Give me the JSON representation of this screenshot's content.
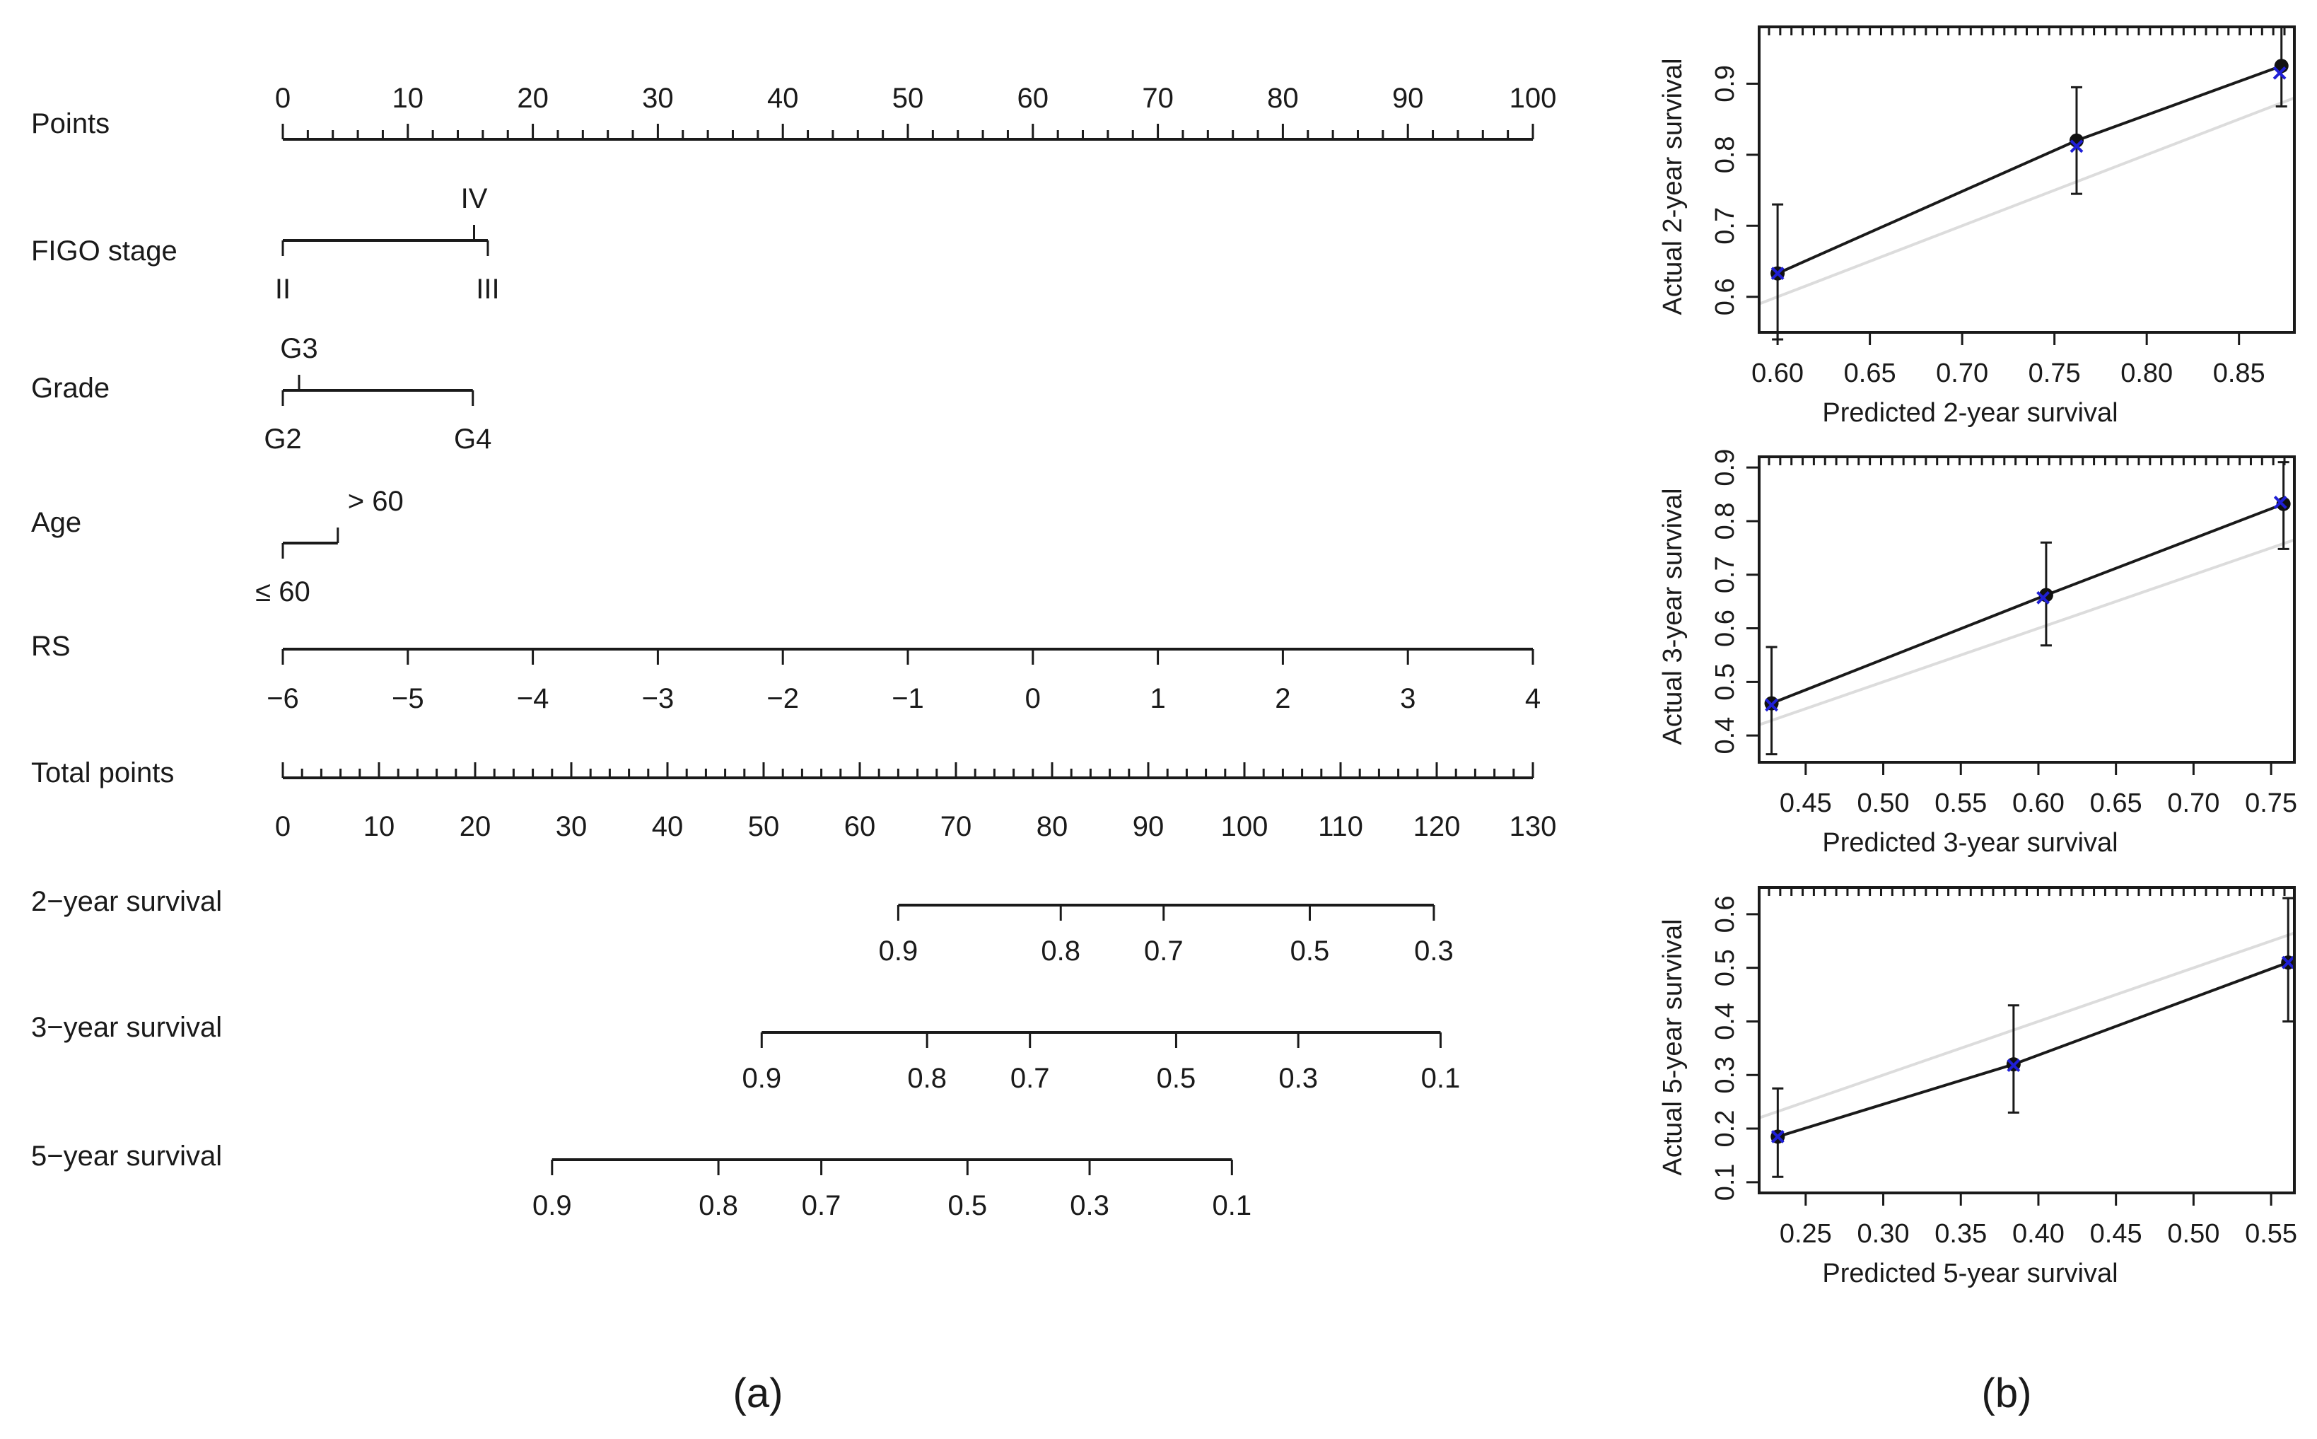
{
  "panel_labels": {
    "a": "(a)",
    "b": "(b)"
  },
  "chart_data": [
    {
      "type": "nomogram",
      "panel": "(a)",
      "rows": [
        {
          "name": "Points",
          "scale_min": 0,
          "scale_max": 100,
          "ticks": [
            0,
            10,
            20,
            30,
            40,
            50,
            60,
            70,
            80,
            90,
            100
          ],
          "minor_step": 2
        },
        {
          "name": "FIGO stage",
          "levels": [
            {
              "label": "II",
              "points": 0,
              "side": "below"
            },
            {
              "label": "IV",
              "points": 15.3,
              "side": "above"
            },
            {
              "label": "III",
              "points": 16.4,
              "side": "below"
            }
          ]
        },
        {
          "name": "Grade",
          "levels": [
            {
              "label": "G2",
              "points": 0,
              "side": "below"
            },
            {
              "label": "G3",
              "points": 1.3,
              "side": "above"
            },
            {
              "label": "G4",
              "points": 15.2,
              "side": "below"
            }
          ]
        },
        {
          "name": "Age",
          "levels": [
            {
              "label": "≤ 60",
              "points": 0,
              "side": "below"
            },
            {
              "label": "> 60",
              "points": 4.4,
              "side": "above"
            }
          ]
        },
        {
          "name": "RS",
          "ticks": [
            {
              "label": "−6",
              "points": 0
            },
            {
              "label": "−5",
              "points": 10
            },
            {
              "label": "−4",
              "points": 20
            },
            {
              "label": "−3",
              "points": 30
            },
            {
              "label": "−2",
              "points": 40
            },
            {
              "label": "−1",
              "points": 50
            },
            {
              "label": "0",
              "points": 60
            },
            {
              "label": "1",
              "points": 70
            },
            {
              "label": "2",
              "points": 80
            },
            {
              "label": "3",
              "points": 90
            },
            {
              "label": "4",
              "points": 100
            }
          ]
        },
        {
          "name": "Total points",
          "scale_min": 0,
          "scale_max": 130,
          "ticks": [
            0,
            10,
            20,
            30,
            40,
            50,
            60,
            70,
            80,
            90,
            100,
            110,
            120,
            130
          ],
          "minor_step": 2
        },
        {
          "name": "2−year survival",
          "ticks": [
            {
              "label": "0.9",
              "total": 64
            },
            {
              "label": "0.8",
              "total": 80.9
            },
            {
              "label": "0.7",
              "total": 91.6
            },
            {
              "label": "0.5",
              "total": 106.8
            },
            {
              "label": "0.3",
              "total": 119.7
            }
          ]
        },
        {
          "name": "3−year survival",
          "ticks": [
            {
              "label": "0.9",
              "total": 49.8
            },
            {
              "label": "0.8",
              "total": 67
            },
            {
              "label": "0.7",
              "total": 77.7
            },
            {
              "label": "0.5",
              "total": 92.9
            },
            {
              "label": "0.3",
              "total": 105.6
            },
            {
              "label": "0.1",
              "total": 120.4
            }
          ]
        },
        {
          "name": "5−year survival",
          "ticks": [
            {
              "label": "0.9",
              "total": 28
            },
            {
              "label": "0.8",
              "total": 45.3
            },
            {
              "label": "0.7",
              "total": 56
            },
            {
              "label": "0.5",
              "total": 71.2
            },
            {
              "label": "0.3",
              "total": 83.9
            },
            {
              "label": "0.1",
              "total": 98.7
            }
          ]
        }
      ]
    },
    {
      "type": "scatter",
      "panel": "(b)",
      "xlabel": "Predicted  2-year survival",
      "ylabel": "Actual 2-year survival",
      "xlim": [
        0.59,
        0.88
      ],
      "ylim": [
        0.55,
        0.98
      ],
      "xticks": [
        "0.60",
        "0.65",
        "0.70",
        "0.75",
        "0.80",
        "0.85"
      ],
      "yticks": [
        "0.6",
        "0.7",
        "0.8",
        "0.9"
      ],
      "observed": [
        {
          "x": 0.6,
          "y": 0.633,
          "lo": 0.54,
          "hi": 0.73
        },
        {
          "x": 0.762,
          "y": 0.82,
          "lo": 0.745,
          "hi": 0.895
        },
        {
          "x": 0.873,
          "y": 0.925,
          "lo": 0.868,
          "hi": 0.98
        }
      ],
      "bias_corrected": [
        {
          "x": 0.6,
          "y": 0.633
        },
        {
          "x": 0.762,
          "y": 0.812
        },
        {
          "x": 0.872,
          "y": 0.915
        }
      ],
      "ideal_line": true
    },
    {
      "type": "scatter",
      "panel": "(b)",
      "xlabel": "Predicted  3-year survival",
      "ylabel": "Actual 3-year survival",
      "xlim": [
        0.42,
        0.765
      ],
      "ylim": [
        0.35,
        0.92
      ],
      "xticks": [
        "0.45",
        "0.50",
        "0.55",
        "0.60",
        "0.65",
        "0.70",
        "0.75"
      ],
      "yticks": [
        "0.4",
        "0.5",
        "0.6",
        "0.7",
        "0.8",
        "0.9"
      ],
      "observed": [
        {
          "x": 0.428,
          "y": 0.46,
          "lo": 0.365,
          "hi": 0.565
        },
        {
          "x": 0.605,
          "y": 0.662,
          "lo": 0.568,
          "hi": 0.76
        },
        {
          "x": 0.758,
          "y": 0.832,
          "lo": 0.748,
          "hi": 0.91
        }
      ],
      "bias_corrected": [
        {
          "x": 0.428,
          "y": 0.457
        },
        {
          "x": 0.603,
          "y": 0.657
        },
        {
          "x": 0.756,
          "y": 0.835
        }
      ],
      "ideal_line": true
    },
    {
      "type": "scatter",
      "panel": "(b)",
      "xlabel": "Predicted  5-year survival",
      "ylabel": "Actual 5-year survival",
      "xlim": [
        0.22,
        0.565
      ],
      "ylim": [
        0.08,
        0.65
      ],
      "xticks": [
        "0.25",
        "0.30",
        "0.35",
        "0.40",
        "0.45",
        "0.50",
        "0.55"
      ],
      "yticks": [
        "0.1",
        "0.2",
        "0.3",
        "0.4",
        "0.5",
        "0.6"
      ],
      "observed": [
        {
          "x": 0.232,
          "y": 0.185,
          "lo": 0.11,
          "hi": 0.275
        },
        {
          "x": 0.384,
          "y": 0.32,
          "lo": 0.23,
          "hi": 0.43
        },
        {
          "x": 0.561,
          "y": 0.51,
          "lo": 0.4,
          "hi": 0.63
        }
      ],
      "bias_corrected": [
        {
          "x": 0.232,
          "y": 0.185
        },
        {
          "x": 0.384,
          "y": 0.318
        },
        {
          "x": 0.561,
          "y": 0.51
        }
      ],
      "ideal_line": true
    }
  ],
  "colors": {
    "axis": "#1a1a1a",
    "bias_marker": "#1f1fd6",
    "ideal_line": "#dcdcdc"
  }
}
